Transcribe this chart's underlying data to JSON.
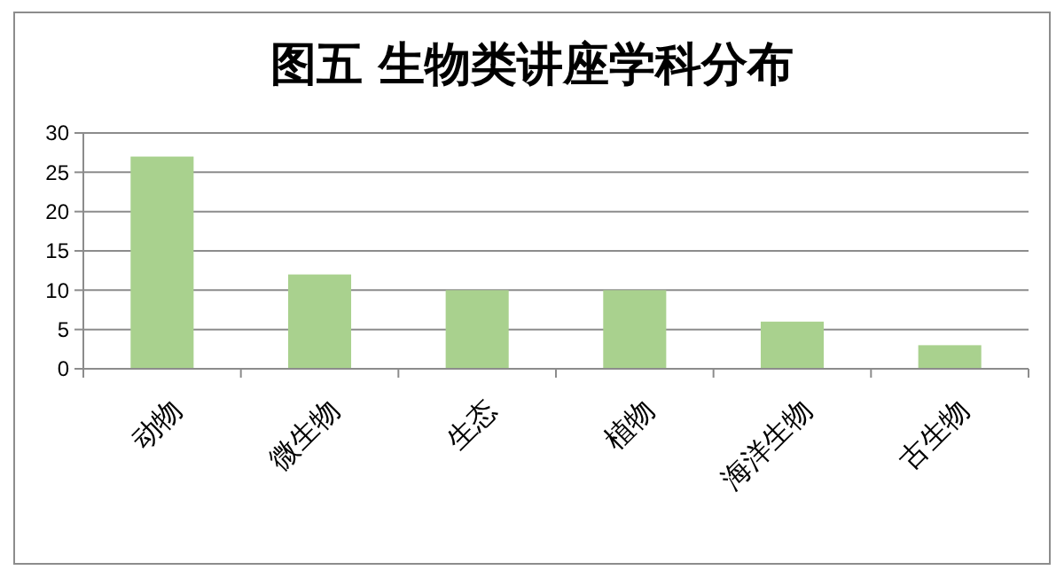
{
  "chart_data": {
    "type": "bar",
    "title": "图五 生物类讲座学科分布",
    "categories": [
      "动物",
      "微生物",
      "生态",
      "植物",
      "海洋生物",
      "古生物"
    ],
    "values": [
      27,
      12,
      10,
      10,
      6,
      3
    ],
    "color": "#a9d18e",
    "ylim": [
      0,
      30
    ],
    "yticks": [
      0,
      5,
      10,
      15,
      20,
      25,
      30
    ],
    "grid": "y"
  }
}
